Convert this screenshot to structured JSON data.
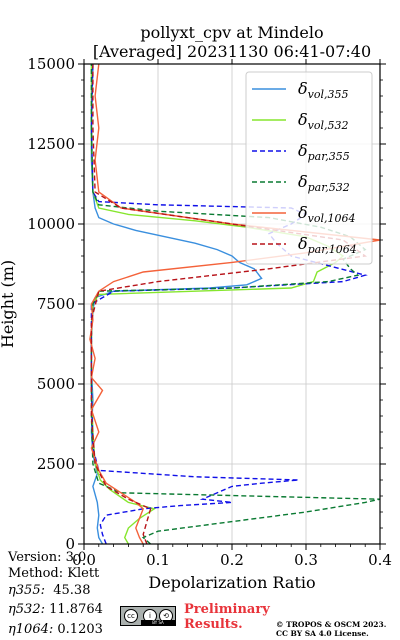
{
  "chart_data": {
    "type": "line",
    "title_line1": "pollyxt_cpv at Mindelo",
    "title_line2": "[Averaged] 20231130 06:41-07:40",
    "xlabel": "Depolarization Ratio",
    "ylabel": "Height (m)",
    "xlim": [
      0,
      0.4
    ],
    "ylim": [
      0,
      15000
    ],
    "xticks": [
      0.0,
      0.1,
      0.2,
      0.3,
      0.4
    ],
    "xtick_labels": [
      "0.0",
      "0.1",
      "0.2",
      "0.3",
      "0.4"
    ],
    "yticks": [
      0,
      2500,
      5000,
      7500,
      10000,
      12500,
      15000
    ],
    "ytick_labels": [
      "0",
      "2500",
      "5000",
      "7500",
      "10000",
      "12500",
      "15000"
    ],
    "grid": true,
    "legend_position": "top-right",
    "series": [
      {
        "name": "δvol,355",
        "legend_base": "δ",
        "legend_sub": "vol,355",
        "color": "#3a8fde",
        "dash": "solid",
        "points": [
          [
            0.025,
            0
          ],
          [
            0.02,
            200
          ],
          [
            0.018,
            500
          ],
          [
            0.02,
            900
          ],
          [
            0.018,
            1300
          ],
          [
            0.012,
            1800
          ],
          [
            0.018,
            2200
          ],
          [
            0.012,
            2800
          ],
          [
            0.01,
            3500
          ],
          [
            0.012,
            4500
          ],
          [
            0.01,
            5500
          ],
          [
            0.01,
            6500
          ],
          [
            0.012,
            7300
          ],
          [
            0.015,
            7700
          ],
          [
            0.04,
            7900
          ],
          [
            0.17,
            8000
          ],
          [
            0.22,
            8100
          ],
          [
            0.24,
            8300
          ],
          [
            0.23,
            8600
          ],
          [
            0.21,
            8800
          ],
          [
            0.2,
            9000
          ],
          [
            0.18,
            9200
          ],
          [
            0.15,
            9400
          ],
          [
            0.11,
            9600
          ],
          [
            0.07,
            9800
          ],
          [
            0.04,
            10000
          ],
          [
            0.02,
            10200
          ],
          [
            0.015,
            10500
          ],
          [
            0.012,
            11000
          ],
          [
            0.01,
            12000
          ],
          [
            0.01,
            13500
          ],
          [
            0.012,
            15000
          ]
        ]
      },
      {
        "name": "δvol,532",
        "legend_base": "δ",
        "legend_sub": "vol,532",
        "color": "#86e62e",
        "dash": "solid",
        "points": [
          [
            0.06,
            0
          ],
          [
            0.055,
            200
          ],
          [
            0.06,
            500
          ],
          [
            0.075,
            800
          ],
          [
            0.095,
            1100
          ],
          [
            0.06,
            1300
          ],
          [
            0.035,
            1700
          ],
          [
            0.022,
            2000
          ],
          [
            0.015,
            2500
          ],
          [
            0.012,
            3500
          ],
          [
            0.01,
            5000
          ],
          [
            0.01,
            6500
          ],
          [
            0.012,
            7500
          ],
          [
            0.02,
            7800
          ],
          [
            0.15,
            7900
          ],
          [
            0.28,
            8000
          ],
          [
            0.31,
            8200
          ],
          [
            0.315,
            8500
          ],
          [
            0.34,
            8800
          ],
          [
            0.35,
            9000
          ],
          [
            0.33,
            9300
          ],
          [
            0.3,
            9600
          ],
          [
            0.22,
            9900
          ],
          [
            0.15,
            10100
          ],
          [
            0.06,
            10300
          ],
          [
            0.02,
            10500
          ],
          [
            0.012,
            11000
          ],
          [
            0.01,
            12500
          ],
          [
            0.01,
            15000
          ]
        ]
      },
      {
        "name": "δpar,355",
        "legend_base": "δ",
        "legend_sub": "par,355",
        "color": "#1010e8",
        "dash": "dash",
        "points": [
          [
            0.03,
            0
          ],
          [
            0.025,
            300
          ],
          [
            0.022,
            600
          ],
          [
            0.03,
            900
          ],
          [
            0.08,
            1100
          ],
          [
            0.13,
            1200
          ],
          [
            0.2,
            1300
          ],
          [
            0.16,
            1400
          ],
          [
            0.2,
            1800
          ],
          [
            0.24,
            1900
          ],
          [
            0.29,
            2000
          ],
          [
            0.15,
            2100
          ],
          [
            0.02,
            2300
          ],
          [
            0.012,
            3000
          ],
          [
            0.01,
            5000
          ],
          [
            0.01,
            7500
          ],
          [
            0.04,
            7900
          ],
          [
            0.2,
            8000
          ],
          [
            0.35,
            8200
          ],
          [
            0.38,
            8400
          ],
          [
            0.33,
            8700
          ],
          [
            0.28,
            9000
          ],
          [
            0.26,
            9400
          ],
          [
            0.25,
            9700
          ],
          [
            0.28,
            10000
          ],
          [
            0.3,
            10300
          ],
          [
            0.28,
            10500
          ],
          [
            0.1,
            10600
          ],
          [
            0.02,
            10700
          ],
          [
            0.012,
            11000
          ],
          [
            0.01,
            13000
          ],
          [
            0.012,
            15000
          ]
        ]
      },
      {
        "name": "δpar,532",
        "legend_base": "δ",
        "legend_sub": "par,532",
        "color": "#0a7a32",
        "dash": "dash",
        "points": [
          [
            0.09,
            0
          ],
          [
            0.08,
            200
          ],
          [
            0.1,
            400
          ],
          [
            0.2,
            700
          ],
          [
            0.3,
            1000
          ],
          [
            0.38,
            1300
          ],
          [
            0.4,
            1400
          ],
          [
            0.05,
            1600
          ],
          [
            0.02,
            1900
          ],
          [
            0.012,
            2500
          ],
          [
            0.01,
            4000
          ],
          [
            0.01,
            6500
          ],
          [
            0.012,
            7500
          ],
          [
            0.02,
            7900
          ],
          [
            0.2,
            8000
          ],
          [
            0.33,
            8200
          ],
          [
            0.37,
            8400
          ],
          [
            0.36,
            8600
          ],
          [
            0.35,
            8900
          ],
          [
            0.38,
            9200
          ],
          [
            0.36,
            9600
          ],
          [
            0.32,
            9900
          ],
          [
            0.25,
            10200
          ],
          [
            0.1,
            10400
          ],
          [
            0.02,
            10600
          ],
          [
            0.012,
            11000
          ],
          [
            0.01,
            13000
          ],
          [
            0.01,
            15000
          ]
        ]
      },
      {
        "name": "δvol,1064",
        "legend_base": "δ",
        "legend_sub": "vol,1064",
        "color": "#f4623a",
        "dash": "solid",
        "points": [
          [
            0.08,
            0
          ],
          [
            0.075,
            200
          ],
          [
            0.07,
            500
          ],
          [
            0.075,
            800
          ],
          [
            0.08,
            1100
          ],
          [
            0.07,
            1300
          ],
          [
            0.05,
            1600
          ],
          [
            0.03,
            1900
          ],
          [
            0.02,
            2300
          ],
          [
            0.01,
            3000
          ],
          [
            0.02,
            3500
          ],
          [
            0.01,
            4200
          ],
          [
            0.025,
            4800
          ],
          [
            0.01,
            5200
          ],
          [
            0.015,
            5800
          ],
          [
            0.008,
            6400
          ],
          [
            0.012,
            7000
          ],
          [
            0.01,
            7500
          ],
          [
            0.02,
            7900
          ],
          [
            0.04,
            8200
          ],
          [
            0.08,
            8500
          ],
          [
            0.2,
            8800
          ],
          [
            0.3,
            9100
          ],
          [
            0.4,
            9500
          ],
          [
            0.2,
            10000
          ],
          [
            0.05,
            10500
          ],
          [
            0.02,
            11000
          ],
          [
            0.015,
            12000
          ],
          [
            0.02,
            13000
          ],
          [
            0.015,
            14000
          ],
          [
            0.02,
            15000
          ]
        ]
      },
      {
        "name": "δpar,1064",
        "legend_base": "δ",
        "legend_sub": "par,1064",
        "color": "#b8141a",
        "dash": "dash",
        "points": [
          [
            0.085,
            0
          ],
          [
            0.08,
            300
          ],
          [
            0.085,
            700
          ],
          [
            0.09,
            1100
          ],
          [
            0.06,
            1400
          ],
          [
            0.03,
            1800
          ],
          [
            0.015,
            2500
          ],
          [
            0.01,
            4000
          ],
          [
            0.01,
            7000
          ],
          [
            0.02,
            7900
          ],
          [
            0.1,
            8200
          ],
          [
            0.25,
            8600
          ],
          [
            0.38,
            9000
          ],
          [
            0.35,
            9500
          ],
          [
            0.2,
            10000
          ],
          [
            0.05,
            10500
          ],
          [
            0.015,
            11000
          ],
          [
            0.012,
            13000
          ],
          [
            0.012,
            15000
          ]
        ]
      }
    ]
  },
  "info": {
    "version": "Version: 3.0",
    "method": "Method: Klett",
    "eta355_label": "η355:",
    "eta355_value": "45.38",
    "eta532_label": "η532:",
    "eta532_value": "11.8764",
    "eta1064_label": "η1064:",
    "eta1064_value": "0.1203"
  },
  "footer": {
    "preliminary_line1": "Preliminary",
    "preliminary_line2": "Results.",
    "copyright_line1": "© TROPOS & OSCM 2023.",
    "copyright_line2": "CC BY SA 4.0 License.",
    "cc_badge_text": "BY  SA",
    "cc_circle_1": "cc",
    "cc_circle_2": "i",
    "cc_circle_3": "⟲"
  }
}
